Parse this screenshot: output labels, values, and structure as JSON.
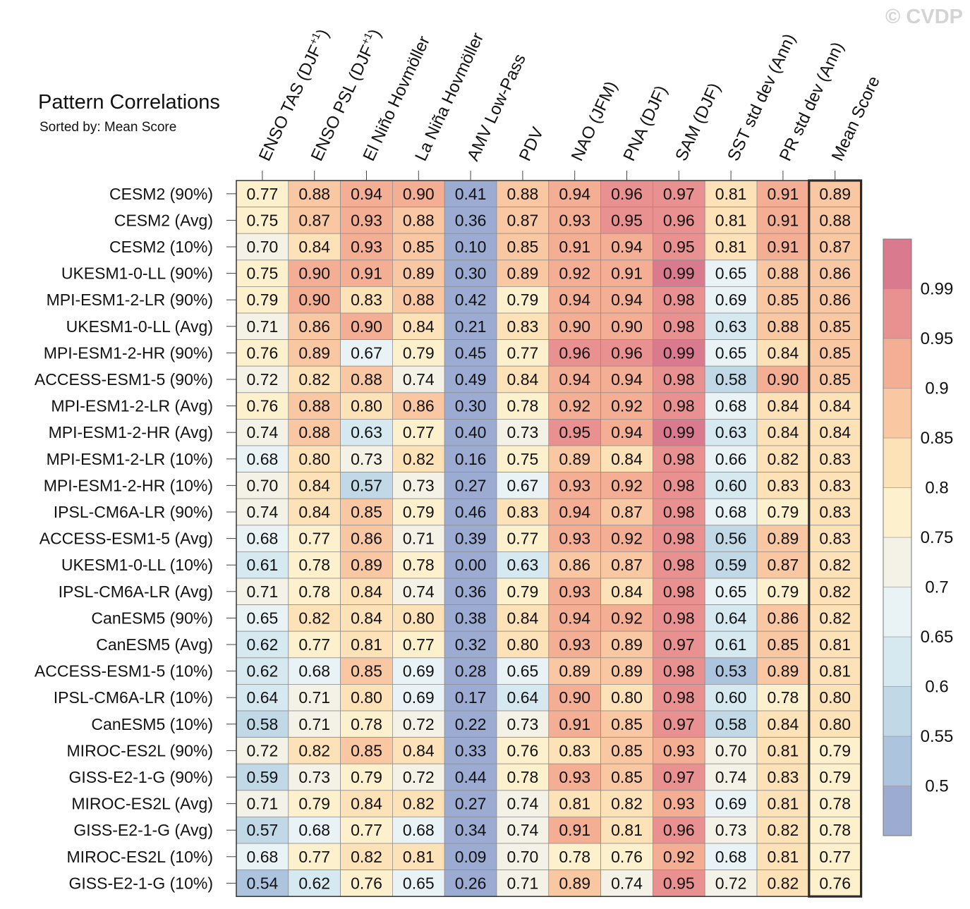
{
  "watermark": "© CVDP",
  "chart_data": {
    "type": "heatmap",
    "title": "Pattern Correlations",
    "subtitle": "Sorted by: Mean Score",
    "columns": [
      {
        "label": "ENSO TAS (DJF",
        "sup": "+1",
        "tail": ")"
      },
      {
        "label": "ENSO PSL (DJF",
        "sup": "+1",
        "tail": ")"
      },
      {
        "label": "El Niño Hovmöller",
        "sup": "",
        "tail": ""
      },
      {
        "label": "La Niña Hovmöller",
        "sup": "",
        "tail": ""
      },
      {
        "label": "AMV Low-Pass",
        "sup": "",
        "tail": ""
      },
      {
        "label": "PDV",
        "sup": "",
        "tail": ""
      },
      {
        "label": "NAO (JFM)",
        "sup": "",
        "tail": ""
      },
      {
        "label": "PNA (DJF)",
        "sup": "",
        "tail": ""
      },
      {
        "label": "SAM (DJF)",
        "sup": "",
        "tail": ""
      },
      {
        "label": "SST std dev (Ann)",
        "sup": "",
        "tail": ""
      },
      {
        "label": "PR std dev (Ann)",
        "sup": "",
        "tail": ""
      },
      {
        "label": "Mean Score",
        "sup": "",
        "tail": ""
      }
    ],
    "rows": [
      "CESM2 (90%)",
      "CESM2 (Avg)",
      "CESM2 (10%)",
      "UKESM1-0-LL (90%)",
      "MPI-ESM1-2-LR (90%)",
      "UKESM1-0-LL (Avg)",
      "MPI-ESM1-2-HR (90%)",
      "ACCESS-ESM1-5 (90%)",
      "MPI-ESM1-2-LR (Avg)",
      "MPI-ESM1-2-HR (Avg)",
      "MPI-ESM1-2-LR (10%)",
      "MPI-ESM1-2-HR (10%)",
      "IPSL-CM6A-LR (90%)",
      "ACCESS-ESM1-5 (Avg)",
      "UKESM1-0-LL (10%)",
      "IPSL-CM6A-LR (Avg)",
      "CanESM5 (90%)",
      "CanESM5 (Avg)",
      "ACCESS-ESM1-5 (10%)",
      "IPSL-CM6A-LR (10%)",
      "CanESM5 (10%)",
      "MIROC-ES2L (90%)",
      "GISS-E2-1-G (90%)",
      "MIROC-ES2L (Avg)",
      "GISS-E2-1-G (Avg)",
      "MIROC-ES2L (10%)",
      "GISS-E2-1-G (10%)"
    ],
    "values": [
      [
        "0.77",
        "0.88",
        "0.94",
        "0.90",
        "0.41",
        "0.88",
        "0.94",
        "0.96",
        "0.97",
        "0.81",
        "0.91",
        "0.89"
      ],
      [
        "0.75",
        "0.87",
        "0.93",
        "0.88",
        "0.36",
        "0.87",
        "0.93",
        "0.95",
        "0.96",
        "0.81",
        "0.91",
        "0.88"
      ],
      [
        "0.70",
        "0.84",
        "0.93",
        "0.85",
        "0.10",
        "0.85",
        "0.91",
        "0.94",
        "0.95",
        "0.81",
        "0.91",
        "0.87"
      ],
      [
        "0.75",
        "0.90",
        "0.91",
        "0.89",
        "0.30",
        "0.89",
        "0.92",
        "0.91",
        "0.99",
        "0.65",
        "0.88",
        "0.86"
      ],
      [
        "0.79",
        "0.90",
        "0.83",
        "0.88",
        "0.42",
        "0.79",
        "0.94",
        "0.94",
        "0.98",
        "0.69",
        "0.85",
        "0.86"
      ],
      [
        "0.71",
        "0.86",
        "0.90",
        "0.84",
        "0.21",
        "0.83",
        "0.90",
        "0.90",
        "0.98",
        "0.63",
        "0.88",
        "0.85"
      ],
      [
        "0.76",
        "0.89",
        "0.67",
        "0.79",
        "0.45",
        "0.77",
        "0.96",
        "0.96",
        "0.99",
        "0.65",
        "0.84",
        "0.85"
      ],
      [
        "0.72",
        "0.82",
        "0.88",
        "0.74",
        "0.49",
        "0.84",
        "0.94",
        "0.94",
        "0.98",
        "0.58",
        "0.90",
        "0.85"
      ],
      [
        "0.76",
        "0.88",
        "0.80",
        "0.86",
        "0.30",
        "0.78",
        "0.92",
        "0.92",
        "0.98",
        "0.68",
        "0.84",
        "0.84"
      ],
      [
        "0.74",
        "0.88",
        "0.63",
        "0.77",
        "0.40",
        "0.73",
        "0.95",
        "0.94",
        "0.99",
        "0.63",
        "0.84",
        "0.84"
      ],
      [
        "0.68",
        "0.80",
        "0.73",
        "0.82",
        "0.16",
        "0.75",
        "0.89",
        "0.84",
        "0.98",
        "0.66",
        "0.82",
        "0.83"
      ],
      [
        "0.70",
        "0.84",
        "0.57",
        "0.73",
        "0.27",
        "0.67",
        "0.93",
        "0.92",
        "0.98",
        "0.60",
        "0.83",
        "0.83"
      ],
      [
        "0.74",
        "0.84",
        "0.85",
        "0.79",
        "0.46",
        "0.83",
        "0.94",
        "0.87",
        "0.98",
        "0.68",
        "0.79",
        "0.83"
      ],
      [
        "0.68",
        "0.77",
        "0.86",
        "0.71",
        "0.39",
        "0.77",
        "0.93",
        "0.92",
        "0.98",
        "0.56",
        "0.89",
        "0.83"
      ],
      [
        "0.61",
        "0.78",
        "0.89",
        "0.78",
        "0.00",
        "0.63",
        "0.86",
        "0.87",
        "0.98",
        "0.59",
        "0.87",
        "0.82"
      ],
      [
        "0.71",
        "0.78",
        "0.84",
        "0.74",
        "0.36",
        "0.79",
        "0.93",
        "0.84",
        "0.98",
        "0.65",
        "0.79",
        "0.82"
      ],
      [
        "0.65",
        "0.82",
        "0.84",
        "0.80",
        "0.38",
        "0.84",
        "0.94",
        "0.92",
        "0.98",
        "0.64",
        "0.86",
        "0.82"
      ],
      [
        "0.62",
        "0.77",
        "0.81",
        "0.77",
        "0.32",
        "0.80",
        "0.93",
        "0.89",
        "0.97",
        "0.61",
        "0.85",
        "0.81"
      ],
      [
        "0.62",
        "0.68",
        "0.85",
        "0.69",
        "0.28",
        "0.65",
        "0.89",
        "0.89",
        "0.98",
        "0.53",
        "0.89",
        "0.81"
      ],
      [
        "0.64",
        "0.71",
        "0.80",
        "0.69",
        "0.17",
        "0.64",
        "0.90",
        "0.80",
        "0.98",
        "0.60",
        "0.78",
        "0.80"
      ],
      [
        "0.58",
        "0.71",
        "0.78",
        "0.72",
        "0.22",
        "0.73",
        "0.91",
        "0.85",
        "0.97",
        "0.58",
        "0.84",
        "0.80"
      ],
      [
        "0.72",
        "0.82",
        "0.85",
        "0.84",
        "0.33",
        "0.76",
        "0.83",
        "0.85",
        "0.93",
        "0.70",
        "0.81",
        "0.79"
      ],
      [
        "0.59",
        "0.73",
        "0.79",
        "0.72",
        "0.44",
        "0.78",
        "0.93",
        "0.85",
        "0.97",
        "0.74",
        "0.83",
        "0.79"
      ],
      [
        "0.71",
        "0.79",
        "0.84",
        "0.82",
        "0.27",
        "0.74",
        "0.81",
        "0.82",
        "0.93",
        "0.69",
        "0.81",
        "0.78"
      ],
      [
        "0.57",
        "0.68",
        "0.77",
        "0.68",
        "0.34",
        "0.74",
        "0.91",
        "0.81",
        "0.96",
        "0.73",
        "0.82",
        "0.78"
      ],
      [
        "0.68",
        "0.77",
        "0.82",
        "0.81",
        "0.09",
        "0.70",
        "0.78",
        "0.76",
        "0.92",
        "0.68",
        "0.81",
        "0.77"
      ],
      [
        "0.54",
        "0.62",
        "0.76",
        "0.65",
        "0.26",
        "0.71",
        "0.89",
        "0.74",
        "0.95",
        "0.72",
        "0.82",
        "0.76"
      ]
    ],
    "highlighted_column": "Mean Score",
    "colorbar": {
      "levels": [
        0.5,
        0.55,
        0.6,
        0.65,
        0.7,
        0.75,
        0.8,
        0.85,
        0.9,
        0.95,
        0.99
      ],
      "labels": [
        "0.5",
        "0.55",
        "0.6",
        "0.65",
        "0.7",
        "0.75",
        "0.8",
        "0.85",
        "0.9",
        "0.95",
        "0.99"
      ],
      "colors": [
        "#9cabd2",
        "#adc4df",
        "#c1d8e7",
        "#d6e8f0",
        "#e9f3f6",
        "#f4f2e6",
        "#fdf0cd",
        "#fde1b7",
        "#f9c8a3",
        "#f4ae94",
        "#e99090",
        "#d97a8e"
      ]
    }
  }
}
